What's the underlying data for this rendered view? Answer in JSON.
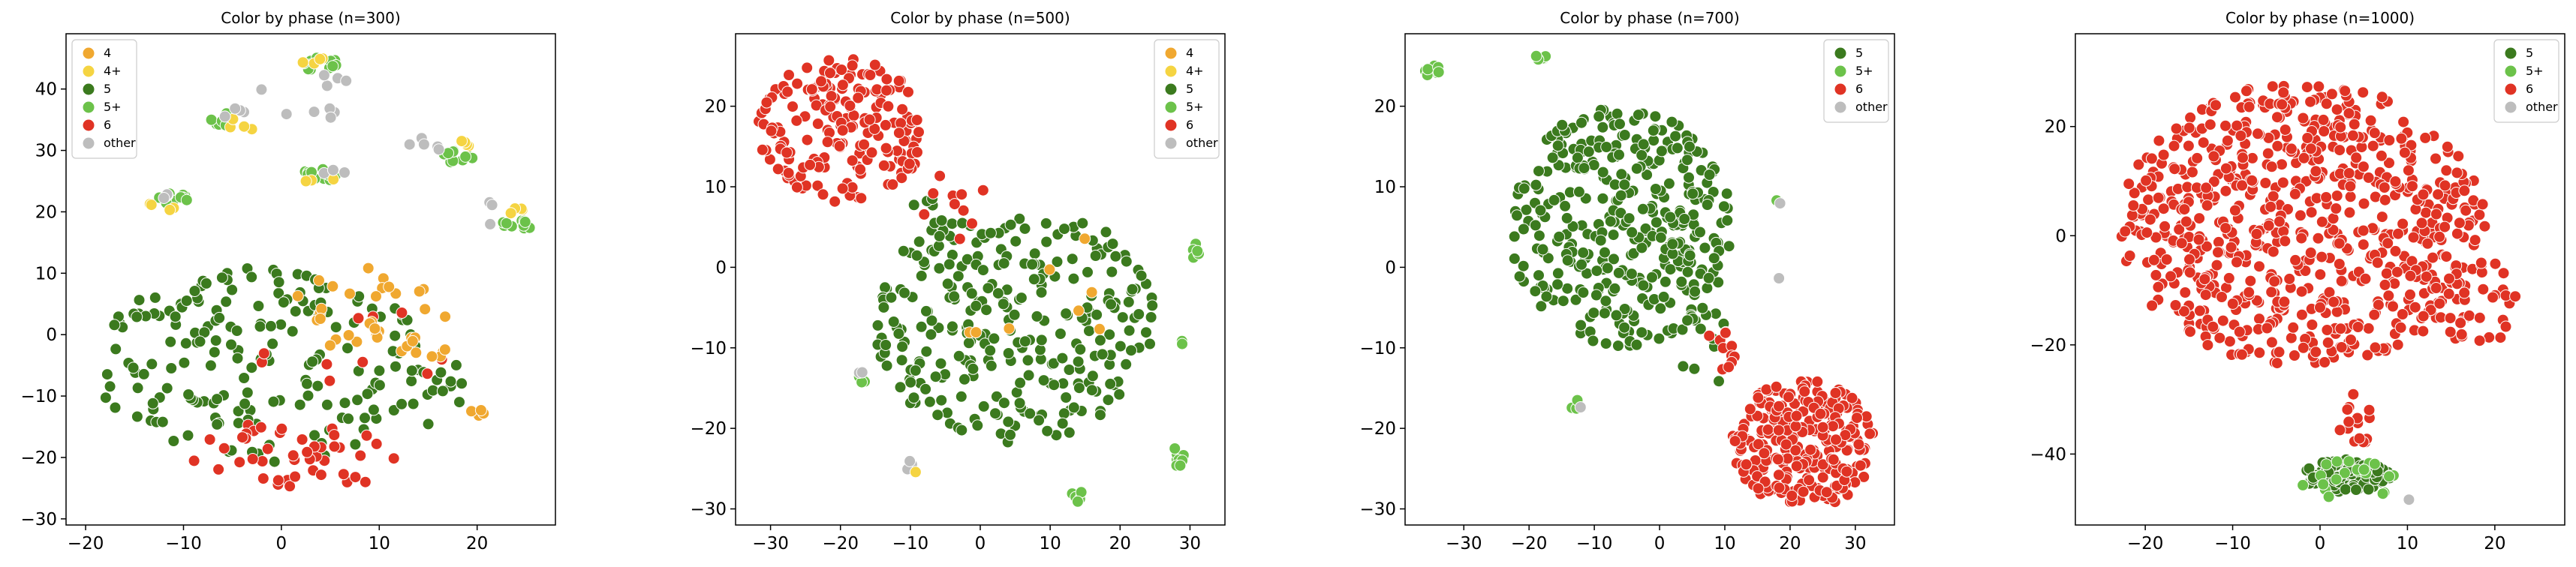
{
  "colors": {
    "4": "#f0a830",
    "4+": "#f5d442",
    "5": "#3b7a1e",
    "5+": "#6cc24a",
    "6": "#e03324",
    "other": "#bdbdbd"
  },
  "chart_data": [
    {
      "type": "scatter",
      "title": "Color by phase (n=300)",
      "xlim": [
        -22,
        28
      ],
      "ylim": [
        -31,
        49
      ],
      "xticks": [
        -20,
        -10,
        0,
        10,
        20
      ],
      "yticks": [
        -30,
        -20,
        -10,
        0,
        10,
        20,
        30,
        40
      ],
      "legend_position": "top-left",
      "legend": [
        "4",
        "4+",
        "5",
        "5+",
        "6",
        "other"
      ],
      "clusters": [
        {
          "phase": "5",
          "cx": -2,
          "cy": -5,
          "rx": 17,
          "ry": 16,
          "n": 180
        },
        {
          "phase": "5",
          "cx": 16,
          "cy": -8,
          "rx": 3,
          "ry": 7,
          "n": 16
        },
        {
          "phase": "6",
          "cx": 1,
          "cy": -20,
          "rx": 11,
          "ry": 6,
          "n": 45
        },
        {
          "phase": "6",
          "cx": 7,
          "cy": -3,
          "rx": 10,
          "ry": 8,
          "n": 10
        },
        {
          "phase": "4",
          "cx": 9,
          "cy": 4,
          "rx": 8,
          "ry": 7,
          "n": 30
        },
        {
          "phase": "4",
          "cx": 15,
          "cy": -2,
          "rx": 3,
          "ry": 2,
          "n": 8
        },
        {
          "phase": "4",
          "cx": 20,
          "cy": -13,
          "rx": 1.5,
          "ry": 1,
          "n": 4
        },
        {
          "phase": "5+",
          "cx": 4,
          "cy": 44,
          "rx": 2,
          "ry": 1.2,
          "n": 12
        },
        {
          "phase": "4+",
          "cx": 3,
          "cy": 45,
          "rx": 1.5,
          "ry": 1,
          "n": 4
        },
        {
          "phase": "other",
          "cx": 5,
          "cy": 42,
          "rx": 2,
          "ry": 1.5,
          "n": 4
        },
        {
          "phase": "5+",
          "cx": -6,
          "cy": 35,
          "rx": 1.6,
          "ry": 1.1,
          "n": 8
        },
        {
          "phase": "4+",
          "cx": -4,
          "cy": 34,
          "rx": 1.5,
          "ry": 1.5,
          "n": 4
        },
        {
          "phase": "other",
          "cx": -5,
          "cy": 36,
          "rx": 1.5,
          "ry": 1,
          "n": 4
        },
        {
          "phase": "5+",
          "cx": 4,
          "cy": 26,
          "rx": 2,
          "ry": 1,
          "n": 10
        },
        {
          "phase": "4+",
          "cx": 4,
          "cy": 25,
          "rx": 1.5,
          "ry": 0.8,
          "n": 3
        },
        {
          "phase": "5+",
          "cx": -11,
          "cy": 22,
          "rx": 1.8,
          "ry": 1,
          "n": 10
        },
        {
          "phase": "4+",
          "cx": -12,
          "cy": 21,
          "rx": 1.8,
          "ry": 1,
          "n": 4
        },
        {
          "phase": "other",
          "cx": -12,
          "cy": 23,
          "rx": 1.5,
          "ry": 1,
          "n": 4
        },
        {
          "phase": "5+",
          "cx": 18,
          "cy": 29,
          "rx": 1.8,
          "ry": 1,
          "n": 10
        },
        {
          "phase": "4+",
          "cx": 19,
          "cy": 31,
          "rx": 1.5,
          "ry": 1,
          "n": 4
        },
        {
          "phase": "other",
          "cx": 15,
          "cy": 31,
          "rx": 2,
          "ry": 1.5,
          "n": 5
        },
        {
          "phase": "5+",
          "cx": 24,
          "cy": 18,
          "rx": 1.8,
          "ry": 1,
          "n": 10
        },
        {
          "phase": "4+",
          "cx": 24,
          "cy": 20,
          "rx": 1.5,
          "ry": 1,
          "n": 4
        },
        {
          "phase": "other",
          "cx": 22,
          "cy": 20,
          "rx": 1.5,
          "ry": 3,
          "n": 3
        },
        {
          "phase": "other",
          "cx": 0,
          "cy": 37,
          "rx": 6,
          "ry": 4,
          "n": 6
        },
        {
          "phase": "other",
          "cx": 6,
          "cy": 27,
          "rx": 3,
          "ry": 1,
          "n": 3
        }
      ]
    },
    {
      "type": "scatter",
      "title": "Color by phase (n=500)",
      "xlim": [
        -35,
        35
      ],
      "ylim": [
        -32,
        29
      ],
      "xticks": [
        -30,
        -20,
        -10,
        0,
        10,
        20,
        30
      ],
      "yticks": [
        -30,
        -20,
        -10,
        0,
        10,
        20
      ],
      "legend_position": "top-right",
      "legend": [
        "4",
        "4+",
        "5",
        "5+",
        "6",
        "other"
      ],
      "clusters": [
        {
          "phase": "6",
          "cx": -20,
          "cy": 17,
          "rx": 12,
          "ry": 9,
          "n": 190
        },
        {
          "phase": "5",
          "cx": 5,
          "cy": -7,
          "rx": 20,
          "ry": 15,
          "n": 280
        },
        {
          "phase": "5",
          "cx": -8,
          "cy": 5,
          "rx": 3,
          "ry": 4,
          "n": 12
        },
        {
          "phase": "6",
          "cx": -4,
          "cy": 7,
          "rx": 6,
          "ry": 6,
          "n": 10
        },
        {
          "phase": "4",
          "cx": 10,
          "cy": -5,
          "rx": 12,
          "ry": 12,
          "n": 8
        },
        {
          "phase": "5+",
          "cx": 31,
          "cy": 2,
          "rx": 1,
          "ry": 1,
          "n": 6
        },
        {
          "phase": "5+",
          "cx": 28.5,
          "cy": -23.5,
          "rx": 1.2,
          "ry": 1.2,
          "n": 8
        },
        {
          "phase": "5+",
          "cx": 14,
          "cy": -28.5,
          "rx": 1,
          "ry": 0.8,
          "n": 6
        },
        {
          "phase": "5+",
          "cx": -17,
          "cy": -14,
          "rx": 0.8,
          "ry": 0.8,
          "n": 3
        },
        {
          "phase": "5+",
          "cx": 28.5,
          "cy": -9,
          "rx": 0.8,
          "ry": 0.8,
          "n": 2
        },
        {
          "phase": "other",
          "cx": -10,
          "cy": -24.5,
          "rx": 1,
          "ry": 0.8,
          "n": 3
        },
        {
          "phase": "other",
          "cx": -17,
          "cy": -13,
          "rx": 0.5,
          "ry": 0.5,
          "n": 2
        },
        {
          "phase": "4+",
          "cx": -9,
          "cy": -25.5,
          "rx": 0.5,
          "ry": 0.5,
          "n": 1
        }
      ]
    },
    {
      "type": "scatter",
      "title": "Color by phase (n=700)",
      "xlim": [
        -39,
        36
      ],
      "ylim": [
        -32,
        29
      ],
      "xticks": [
        -30,
        -20,
        -10,
        0,
        10,
        20,
        30
      ],
      "yticks": [
        -30,
        -20,
        -10,
        0,
        10,
        20
      ],
      "legend_position": "top-right",
      "legend": [
        "5",
        "5+",
        "6",
        "other"
      ],
      "clusters": [
        {
          "phase": "5",
          "cx": -6,
          "cy": 5,
          "rx": 17,
          "ry": 15,
          "n": 360
        },
        {
          "phase": "5",
          "cx": 7,
          "cy": -10,
          "rx": 4,
          "ry": 5,
          "n": 14
        },
        {
          "phase": "6",
          "cx": 22,
          "cy": -22,
          "rx": 11,
          "ry": 8,
          "n": 260
        },
        {
          "phase": "6",
          "cx": 10,
          "cy": -10,
          "rx": 3,
          "ry": 3,
          "n": 12
        },
        {
          "phase": "5+",
          "cx": -35,
          "cy": 24.5,
          "rx": 1.2,
          "ry": 1,
          "n": 10
        },
        {
          "phase": "5+",
          "cx": -18,
          "cy": 26,
          "rx": 1.2,
          "ry": 0.6,
          "n": 5
        },
        {
          "phase": "5+",
          "cx": -13,
          "cy": -17,
          "rx": 0.8,
          "ry": 0.6,
          "n": 3
        },
        {
          "phase": "5+",
          "cx": 18,
          "cy": 8.5,
          "rx": 0.5,
          "ry": 0.5,
          "n": 2
        },
        {
          "phase": "other",
          "cx": -12.5,
          "cy": -17.5,
          "rx": 0.5,
          "ry": 0.5,
          "n": 1
        },
        {
          "phase": "other",
          "cx": 18,
          "cy": -1.5,
          "rx": 0.4,
          "ry": 0.4,
          "n": 1
        },
        {
          "phase": "other",
          "cx": 18.5,
          "cy": 8,
          "rx": 0.4,
          "ry": 0.4,
          "n": 1
        }
      ]
    },
    {
      "type": "scatter",
      "title": "Color by phase (n=1000)",
      "xlim": [
        -28,
        28
      ],
      "ylim": [
        -53,
        37
      ],
      "xticks": [
        -20,
        -10,
        0,
        10,
        20
      ],
      "yticks": [
        -40,
        -20,
        0,
        20
      ],
      "legend_position": "top-right",
      "legend": [
        "5",
        "5+",
        "6",
        "other"
      ],
      "clusters": [
        {
          "phase": "6",
          "cx": -2,
          "cy": 2,
          "rx": 21,
          "ry": 26,
          "n": 700
        },
        {
          "phase": "6",
          "cx": 18,
          "cy": -12,
          "rx": 5,
          "ry": 8,
          "n": 40
        },
        {
          "phase": "6",
          "cx": 4,
          "cy": -34,
          "rx": 2,
          "ry": 5,
          "n": 15
        },
        {
          "phase": "5",
          "cx": 3,
          "cy": -44,
          "rx": 5,
          "ry": 3,
          "n": 110
        },
        {
          "phase": "5+",
          "cx": 3,
          "cy": -45,
          "rx": 6,
          "ry": 4,
          "n": 20
        },
        {
          "phase": "other",
          "cx": 9.5,
          "cy": -48.5,
          "rx": 0.8,
          "ry": 0.6,
          "n": 2
        }
      ]
    }
  ]
}
